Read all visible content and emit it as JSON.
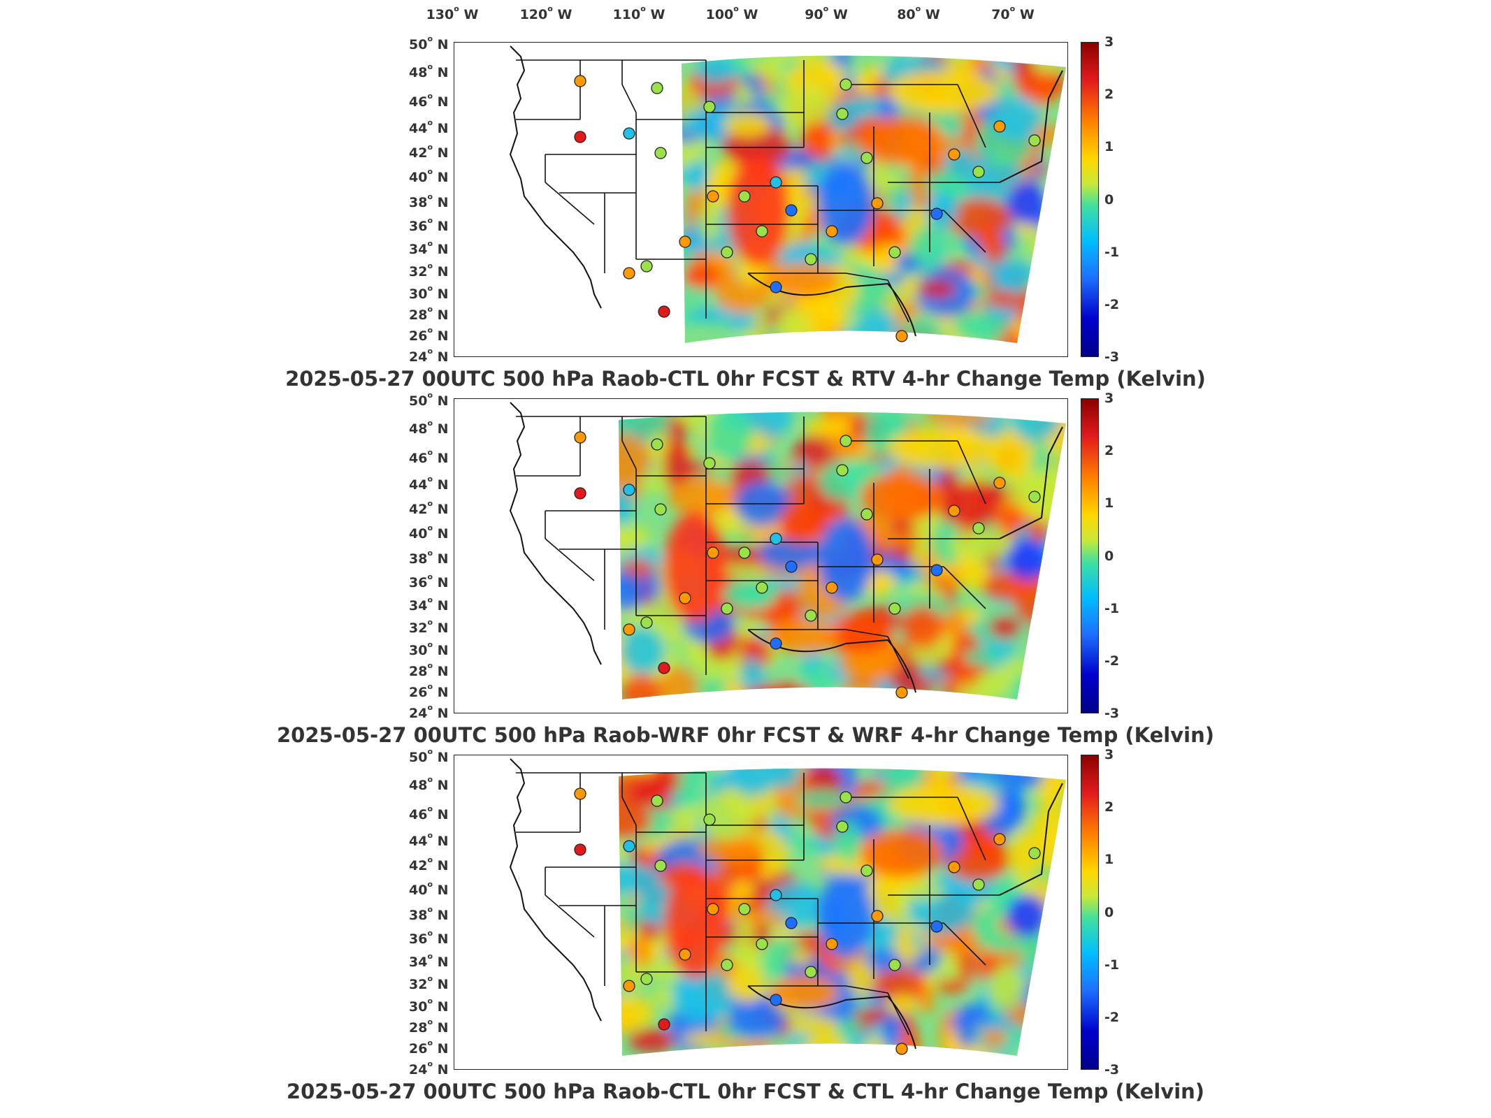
{
  "lon_ticks": [
    {
      "num": "130",
      "dir": "W"
    },
    {
      "num": "120",
      "dir": "W"
    },
    {
      "num": "110",
      "dir": "W"
    },
    {
      "num": "100",
      "dir": "W"
    },
    {
      "num": "90",
      "dir": "W"
    },
    {
      "num": "80",
      "dir": "W"
    },
    {
      "num": "70",
      "dir": "W"
    }
  ],
  "lat_ticks": [
    {
      "num": "50",
      "dir": "N"
    },
    {
      "num": "48",
      "dir": "N"
    },
    {
      "num": "46",
      "dir": "N"
    },
    {
      "num": "44",
      "dir": "N"
    },
    {
      "num": "42",
      "dir": "N"
    },
    {
      "num": "40",
      "dir": "N"
    },
    {
      "num": "38",
      "dir": "N"
    },
    {
      "num": "36",
      "dir": "N"
    },
    {
      "num": "34",
      "dir": "N"
    },
    {
      "num": "32",
      "dir": "N"
    },
    {
      "num": "30",
      "dir": "N"
    },
    {
      "num": "28",
      "dir": "N"
    },
    {
      "num": "26",
      "dir": "N"
    },
    {
      "num": "24",
      "dir": "N"
    }
  ],
  "colorbar_ticks": [
    "3",
    "2",
    "1",
    "0",
    "-1",
    "-2",
    "-3"
  ],
  "colorbar_range": [
    -3,
    3
  ],
  "panels": [
    {
      "title": "2025-05-27 00UTC 500 hPa Raob-CTL 0hr FCST & RTV 4-hr Change Temp (Kelvin)"
    },
    {
      "title": "2025-05-27 00UTC 500 hPa Raob-WRF 0hr FCST & WRF 4-hr Change Temp (Kelvin)"
    },
    {
      "title": "2025-05-27 00UTC 500 hPa Raob-CTL 0hr FCST & CTL 4-hr Change Temp (Kelvin)"
    }
  ],
  "colors": {
    "hot": "#e31a1c",
    "warm": "#ff9900",
    "neutral": "#9be24a",
    "cool": "#20c0e8",
    "cold": "#1e6fff"
  }
}
